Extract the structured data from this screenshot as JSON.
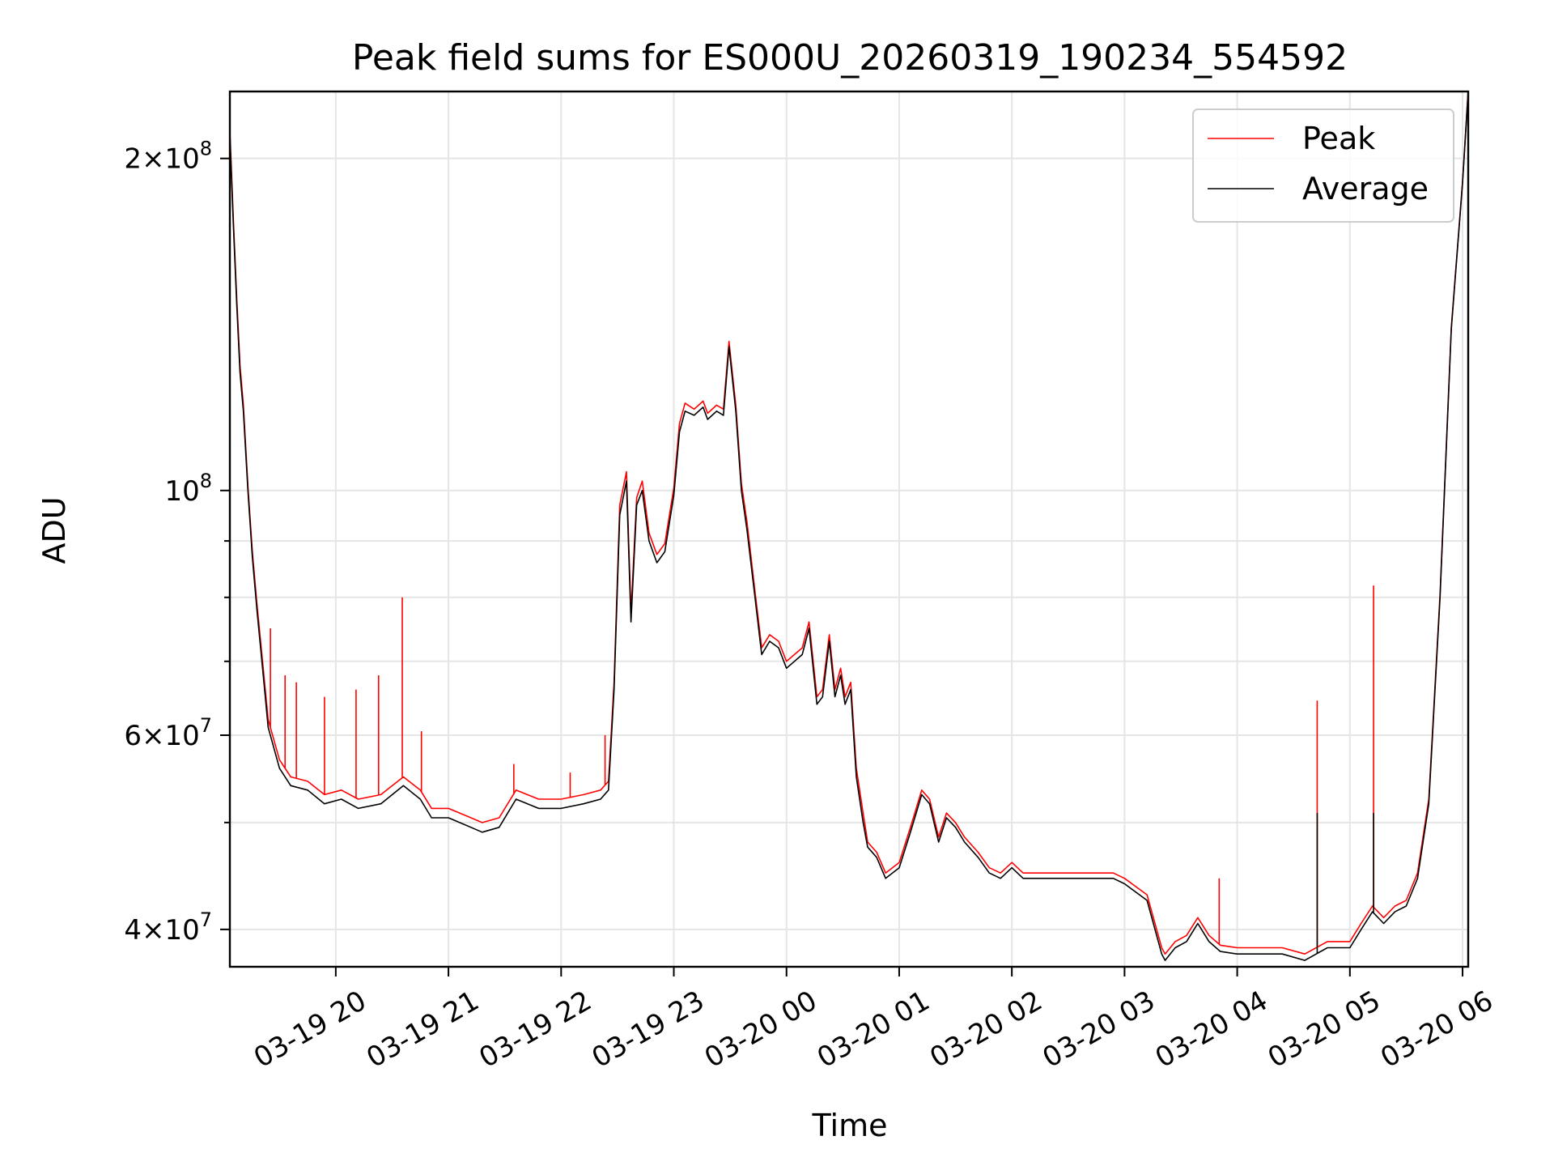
{
  "chart_data": {
    "type": "line",
    "title": "Peak field sums for ES000U_20260319_190234_554592",
    "xlabel": "Time",
    "ylabel": "ADU",
    "yscale": "log",
    "ylim": [
      37000000,
      230000000
    ],
    "xlim_hours": [
      19.06,
      30.05
    ],
    "grid": true,
    "legend_position": "upper-right",
    "x_ticks": [
      {
        "value": 20,
        "label": "03-19 20"
      },
      {
        "value": 21,
        "label": "03-19 21"
      },
      {
        "value": 22,
        "label": "03-19 22"
      },
      {
        "value": 23,
        "label": "03-19 23"
      },
      {
        "value": 24,
        "label": "03-20 00"
      },
      {
        "value": 25,
        "label": "03-20 01"
      },
      {
        "value": 26,
        "label": "03-20 02"
      },
      {
        "value": 27,
        "label": "03-20 03"
      },
      {
        "value": 28,
        "label": "03-20 04"
      },
      {
        "value": 29,
        "label": "03-20 05"
      },
      {
        "value": 30,
        "label": "03-20 06"
      }
    ],
    "y_ticks": [
      {
        "value": 40000000,
        "mant": "4",
        "exp": "7"
      },
      {
        "value": 60000000,
        "mant": "6",
        "exp": "7"
      },
      {
        "value": 100000000,
        "mant": "",
        "exp": "8"
      },
      {
        "value": 200000000,
        "mant": "2",
        "exp": "8"
      }
    ],
    "y_minor": [
      50000000,
      70000000,
      80000000,
      90000000
    ],
    "series": [
      {
        "name": "Average",
        "color": "#000000",
        "x": [
          19.06,
          19.09,
          19.12,
          19.15,
          19.18,
          19.22,
          19.26,
          19.3,
          19.35,
          19.4,
          19.5,
          19.6,
          19.75,
          19.9,
          20.05,
          20.2,
          20.4,
          20.6,
          20.75,
          20.85,
          21.0,
          21.2,
          21.3,
          21.45,
          21.6,
          21.8,
          22.0,
          22.2,
          22.35,
          22.42,
          22.47,
          22.52,
          22.58,
          22.62,
          22.67,
          22.72,
          22.78,
          22.85,
          22.92,
          23.0,
          23.05,
          23.1,
          23.18,
          23.26,
          23.3,
          23.38,
          23.44,
          23.49,
          23.55,
          23.6,
          23.65,
          23.72,
          23.78,
          23.85,
          23.93,
          24.0,
          24.07,
          24.14,
          24.2,
          24.27,
          24.32,
          24.38,
          24.43,
          24.48,
          24.52,
          24.57,
          24.62,
          24.68,
          24.72,
          24.8,
          24.88,
          25.0,
          25.1,
          25.2,
          25.27,
          25.35,
          25.42,
          25.5,
          25.58,
          25.7,
          25.8,
          25.9,
          26.0,
          26.1,
          26.3,
          26.5,
          26.7,
          26.9,
          27.0,
          27.2,
          27.33,
          27.36,
          27.45,
          27.55,
          27.65,
          27.75,
          27.85,
          28.0,
          28.2,
          28.4,
          28.6,
          28.8,
          29.0,
          29.1,
          29.2,
          29.3,
          29.4,
          29.5,
          29.6,
          29.7,
          29.8,
          29.9,
          30.0,
          30.05
        ],
        "y": [
          210000000,
          175000000,
          148000000,
          128000000,
          118000000,
          100000000,
          87000000,
          78000000,
          69000000,
          61000000,
          56000000,
          54000000,
          53500000,
          52000000,
          52500000,
          51500000,
          52000000,
          54000000,
          52500000,
          50500000,
          50500000,
          49500000,
          49000000,
          49500000,
          52500000,
          51500000,
          51500000,
          52000000,
          52500000,
          53500000,
          66000000,
          95000000,
          102000000,
          76000000,
          97000000,
          100000000,
          90000000,
          86000000,
          88000000,
          99000000,
          113000000,
          118000000,
          117000000,
          119000000,
          116000000,
          118000000,
          117000000,
          135000000,
          118000000,
          100000000,
          92000000,
          80000000,
          71000000,
          73000000,
          72000000,
          69000000,
          70000000,
          71000000,
          75000000,
          64000000,
          65000000,
          73000000,
          65000000,
          68000000,
          64000000,
          66000000,
          55000000,
          50000000,
          47500000,
          46500000,
          44500000,
          45500000,
          49000000,
          53000000,
          52000000,
          48000000,
          50500000,
          49500000,
          48000000,
          46500000,
          45000000,
          44500000,
          45500000,
          44500000,
          44500000,
          44500000,
          44500000,
          44500000,
          44000000,
          42500000,
          38000000,
          37500000,
          38500000,
          39000000,
          40500000,
          39000000,
          38200000,
          38000000,
          38000000,
          38000000,
          37500000,
          38500000,
          38500000,
          40000000,
          41500000,
          40500000,
          41500000,
          42000000,
          44500000,
          52000000,
          80000000,
          140000000,
          190000000,
          230000000
        ]
      },
      {
        "name": "Peak",
        "color": "#ff0000",
        "x": [
          19.06,
          19.09,
          19.12,
          19.15,
          19.18,
          19.22,
          19.26,
          19.3,
          19.35,
          19.4,
          19.5,
          19.6,
          19.75,
          19.9,
          20.05,
          20.2,
          20.4,
          20.6,
          20.75,
          20.85,
          21.0,
          21.2,
          21.3,
          21.45,
          21.6,
          21.8,
          22.0,
          22.2,
          22.35,
          22.42,
          22.47,
          22.52,
          22.58,
          22.62,
          22.67,
          22.72,
          22.78,
          22.85,
          22.92,
          23.0,
          23.05,
          23.1,
          23.18,
          23.26,
          23.3,
          23.38,
          23.44,
          23.49,
          23.55,
          23.6,
          23.65,
          23.72,
          23.78,
          23.85,
          23.93,
          24.0,
          24.07,
          24.14,
          24.2,
          24.27,
          24.32,
          24.38,
          24.43,
          24.48,
          24.52,
          24.57,
          24.62,
          24.68,
          24.72,
          24.8,
          24.88,
          25.0,
          25.1,
          25.2,
          25.27,
          25.35,
          25.42,
          25.5,
          25.58,
          25.7,
          25.8,
          25.9,
          26.0,
          26.1,
          26.3,
          26.5,
          26.7,
          26.9,
          27.0,
          27.2,
          27.33,
          27.36,
          27.45,
          27.55,
          27.65,
          27.75,
          27.85,
          28.0,
          28.2,
          28.4,
          28.6,
          28.8,
          29.0,
          29.1,
          29.2,
          29.3,
          29.4,
          29.5,
          29.6,
          29.7,
          29.8,
          29.9,
          30.0,
          30.05
        ],
        "y": [
          212000000,
          177000000,
          150000000,
          130000000,
          119500000,
          101000000,
          88000000,
          79000000,
          70000000,
          62000000,
          57000000,
          55000000,
          54500000,
          53000000,
          53500000,
          52500000,
          53000000,
          55000000,
          53500000,
          51500000,
          51500000,
          50500000,
          50000000,
          50500000,
          53500000,
          52500000,
          52500000,
          53000000,
          53500000,
          54500000,
          67000000,
          97000000,
          104000000,
          77500000,
          98500000,
          102000000,
          91500000,
          87500000,
          89500000,
          100500000,
          115000000,
          120000000,
          118500000,
          120500000,
          117500000,
          119500000,
          118500000,
          136500000,
          119500000,
          101500000,
          93500000,
          81000000,
          72000000,
          74000000,
          73000000,
          70000000,
          71000000,
          72000000,
          76000000,
          65000000,
          66000000,
          74000000,
          66000000,
          69000000,
          65000000,
          67000000,
          56000000,
          51000000,
          48000000,
          47000000,
          45000000,
          46000000,
          49500000,
          53500000,
          52500000,
          48500000,
          51000000,
          50000000,
          48500000,
          47000000,
          45500000,
          45000000,
          46000000,
          45000000,
          45000000,
          45000000,
          45000000,
          45000000,
          44500000,
          43000000,
          38500000,
          38000000,
          39000000,
          39500000,
          41000000,
          39500000,
          38700000,
          38500000,
          38500000,
          38500000,
          38000000,
          39000000,
          39000000,
          40500000,
          42000000,
          41000000,
          42000000,
          42500000,
          45000000,
          52500000,
          80500000,
          140500000,
          190500000,
          231000000
        ]
      }
    ],
    "spikes": [
      {
        "name": "Peak",
        "x": 19.42,
        "y": 75000000
      },
      {
        "name": "Peak",
        "x": 19.55,
        "y": 68000000
      },
      {
        "name": "Peak",
        "x": 19.65,
        "y": 67000000
      },
      {
        "name": "Peak",
        "x": 19.9,
        "y": 65000000
      },
      {
        "name": "Peak",
        "x": 20.18,
        "y": 66000000
      },
      {
        "name": "Peak",
        "x": 20.38,
        "y": 68000000
      },
      {
        "name": "Peak",
        "x": 20.59,
        "y": 80000000
      },
      {
        "name": "Peak",
        "x": 20.76,
        "y": 60500000
      },
      {
        "name": "Peak",
        "x": 21.58,
        "y": 56500000
      },
      {
        "name": "Peak",
        "x": 22.08,
        "y": 55500000
      },
      {
        "name": "Peak",
        "x": 22.39,
        "y": 60000000
      },
      {
        "name": "Peak",
        "x": 27.84,
        "y": 44500000
      },
      {
        "name": "Peak",
        "x": 28.71,
        "y": 64500000
      },
      {
        "name": "Average",
        "x": 28.71,
        "y": 51000000
      },
      {
        "name": "Peak",
        "x": 29.21,
        "y": 82000000
      },
      {
        "name": "Average",
        "x": 29.21,
        "y": 51000000
      }
    ]
  }
}
